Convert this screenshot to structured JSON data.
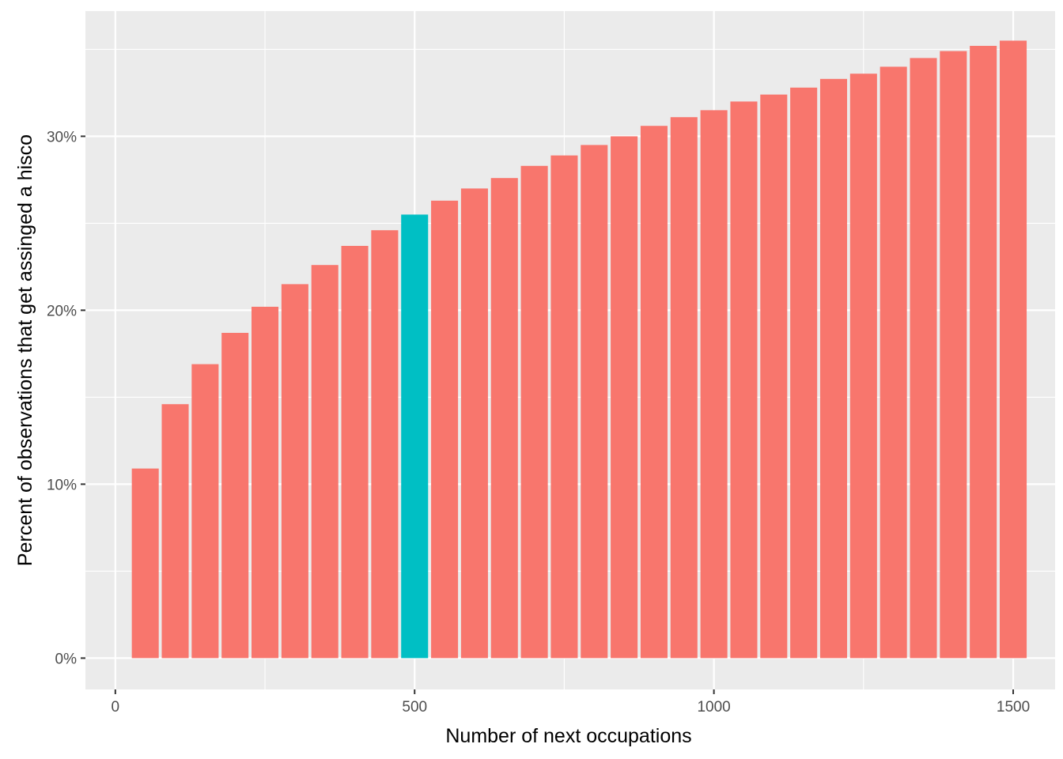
{
  "chart_data": {
    "type": "bar",
    "title": "",
    "xlabel": "Number of next occupations",
    "ylabel": "Percent of observations that get assinged a hisco",
    "xlim": [
      -50,
      1570
    ],
    "ylim": [
      -1.8,
      37.2
    ],
    "x_ticks": [
      0,
      500,
      1000,
      1500
    ],
    "x_tick_labels": [
      "0",
      "500",
      "1000",
      "1500"
    ],
    "y_ticks": [
      0,
      10,
      20,
      30
    ],
    "y_tick_labels": [
      "0%",
      "10%",
      "20%",
      "30%"
    ],
    "grid": true,
    "legend": "none",
    "bar_width": 45,
    "colors": {
      "default": "#F8766D",
      "highlight": "#00BFC4",
      "panel": "#EBEBEB",
      "grid": "#FFFFFF"
    },
    "highlight_x": 500,
    "x": [
      50,
      100,
      150,
      200,
      250,
      300,
      350,
      400,
      450,
      500,
      550,
      600,
      650,
      700,
      750,
      800,
      850,
      900,
      950,
      1000,
      1050,
      1100,
      1150,
      1200,
      1250,
      1300,
      1350,
      1400,
      1450,
      1500
    ],
    "values": [
      10.9,
      14.6,
      16.9,
      18.7,
      20.2,
      21.5,
      22.6,
      23.7,
      24.6,
      25.5,
      26.3,
      27.0,
      27.6,
      28.3,
      28.9,
      29.5,
      30.0,
      30.6,
      31.1,
      31.5,
      32.0,
      32.4,
      32.8,
      33.3,
      33.6,
      34.0,
      34.5,
      34.9,
      35.2,
      35.5
    ]
  }
}
